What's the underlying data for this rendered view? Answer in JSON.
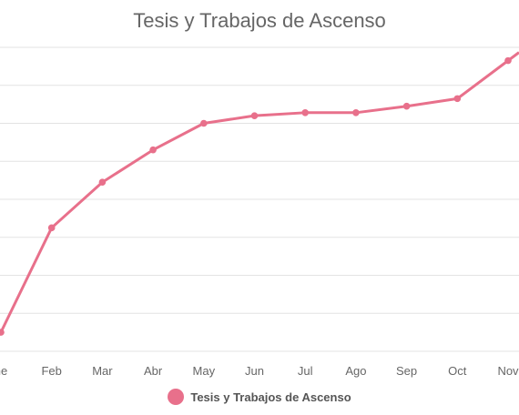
{
  "chart_data": {
    "type": "line",
    "title": "Tesis y Trabajos de Ascenso",
    "xlabel": "",
    "ylabel": "",
    "categories": [
      "Ene",
      "Feb",
      "Mar",
      "Abr",
      "May",
      "Jun",
      "Jul",
      "Ago",
      "Sep",
      "Oct",
      "Nov"
    ],
    "visible_tick_labels": [
      "ne",
      "Feb",
      "Mar",
      "Abr",
      "May",
      "Jun",
      "Jul",
      "Ago",
      "Sep",
      "Oct",
      "Nov"
    ],
    "ylim": [
      0,
      8
    ],
    "grid": true,
    "legend_position": "bottom",
    "series": [
      {
        "name": "Tesis y Trabajos de Ascenso",
        "color": "#e8708b",
        "values": [
          0.5,
          3.25,
          4.45,
          5.3,
          6.0,
          6.2,
          6.28,
          6.28,
          6.45,
          6.65,
          7.65
        ]
      }
    ]
  }
}
